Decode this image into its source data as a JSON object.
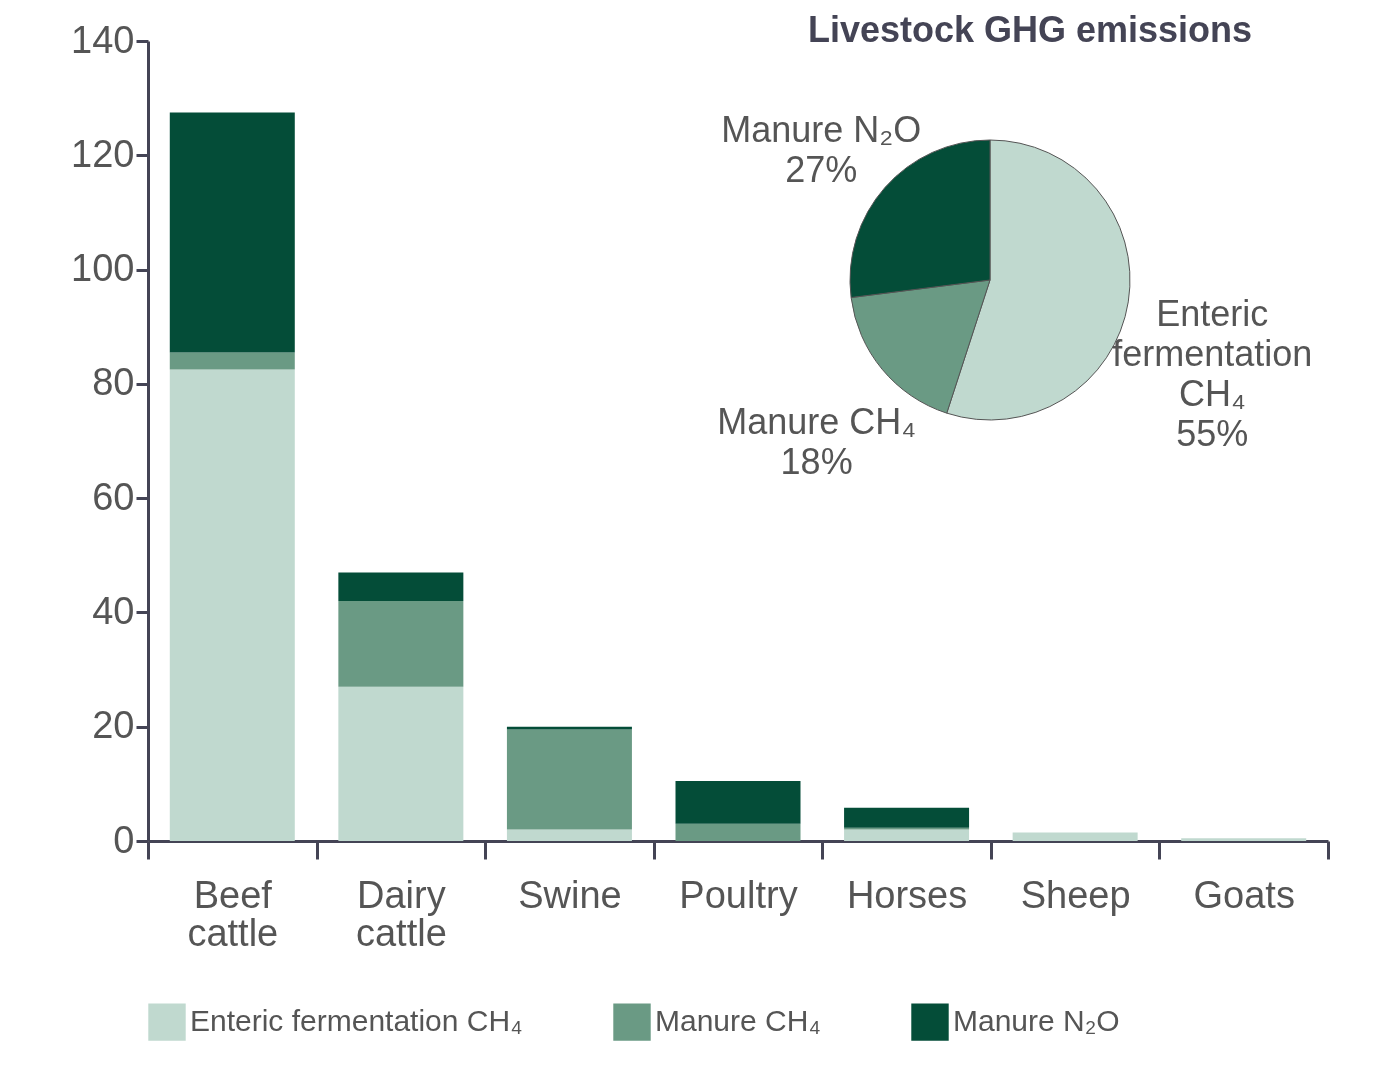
{
  "chart_data": [
    {
      "type": "bar",
      "stacked": true,
      "categories": [
        "Beef cattle",
        "Dairy cattle",
        "Swine",
        "Poultry",
        "Horses",
        "Sheep",
        "Goats"
      ],
      "series": [
        {
          "name": "Enteric fermentation CH₄",
          "color": "#c0d9cf",
          "values": [
            82.5,
            27,
            2,
            null,
            2,
            1.5,
            0.5
          ]
        },
        {
          "name": "Manure CH₄",
          "color": "#6a9a84",
          "values": [
            3,
            15,
            17.5,
            3,
            0.3,
            null,
            null
          ]
        },
        {
          "name": "Manure N₂O",
          "color": "#044d38",
          "values": [
            42,
            5,
            0.5,
            7.5,
            3.5,
            null,
            null
          ]
        }
      ],
      "ylim": [
        0,
        140
      ],
      "yticks": [
        0,
        20,
        40,
        60,
        80,
        100,
        120,
        140
      ],
      "grid": false,
      "legend": "bottom"
    },
    {
      "type": "pie",
      "title": "Livestock GHG emissions",
      "categories": [
        "Enteric fermentation CH₄",
        "Manure CH₄",
        "Manure N₂O"
      ],
      "values": [
        55,
        18,
        27
      ],
      "colors": [
        "#c0d9cf",
        "#6a9a84",
        "#044d38"
      ],
      "value_labels": [
        "55%",
        "18%",
        "27%"
      ],
      "legend": false
    }
  ]
}
